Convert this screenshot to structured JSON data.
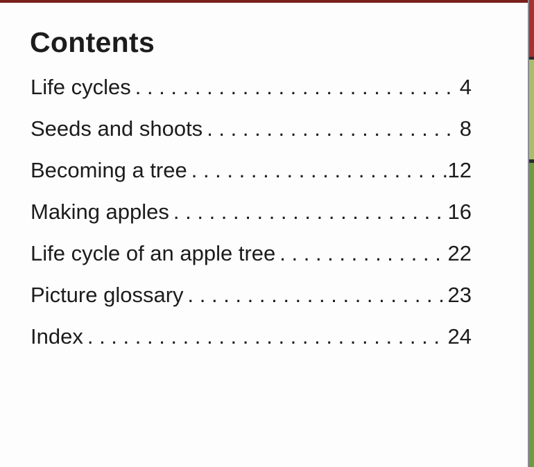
{
  "colors": {
    "top_strip": "#7a1f1c",
    "edge_red": "#a8322c",
    "edge_green_light": "#a9bd6c",
    "edge_green": "#6f9a3e"
  },
  "title": "Contents",
  "entries": [
    {
      "label": "Life cycles",
      "page": "4"
    },
    {
      "label": "Seeds and shoots",
      "page": "8"
    },
    {
      "label": "Becoming a tree",
      "page": "12"
    },
    {
      "label": "Making apples",
      "page": "16"
    },
    {
      "label": "Life cycle of an apple tree",
      "page": "22"
    },
    {
      "label": "Picture glossary",
      "page": "23"
    },
    {
      "label": "Index",
      "page": "24"
    }
  ]
}
